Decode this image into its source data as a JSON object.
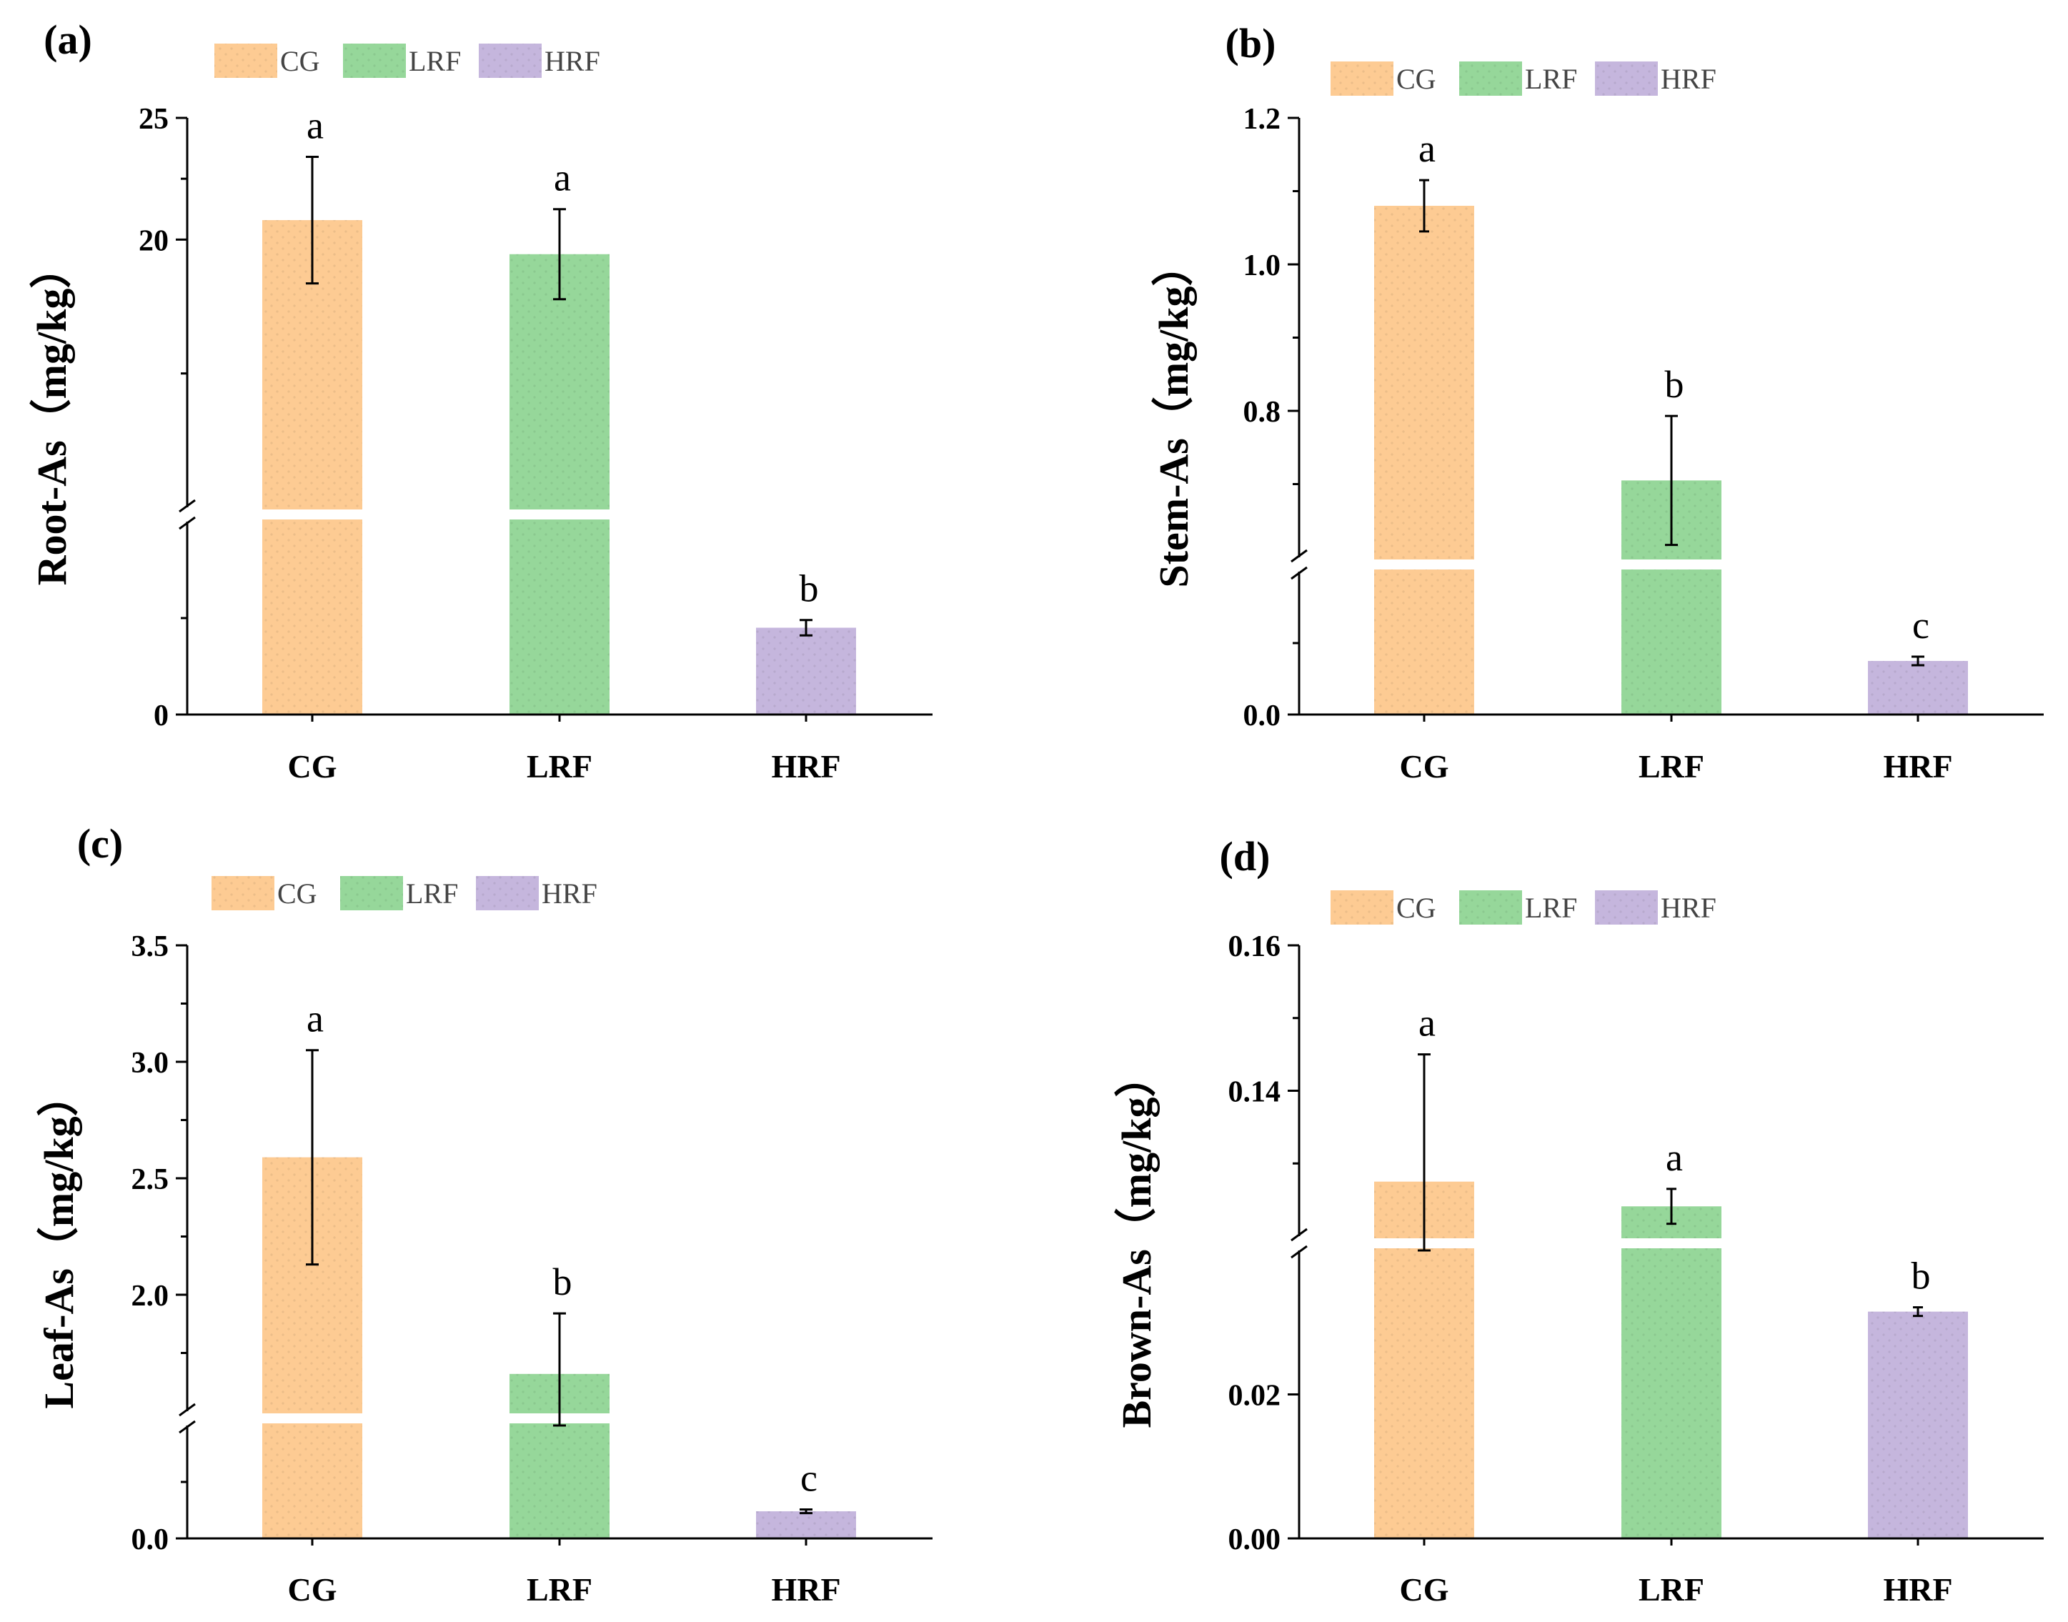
{
  "categories": [
    "CG",
    "LRF",
    "HRF"
  ],
  "colors": {
    "CG": "#FDCB93",
    "LRF": "#96D79A",
    "HRF": "#C5B6DD",
    "axis": "#000000",
    "error_bar": "#000000"
  },
  "chart_data": [
    {
      "type": "bar",
      "panel_label": "(a)",
      "ylabel": "Root-As（mg/kg）",
      "categories": [
        "CG",
        "LRF",
        "HRF"
      ],
      "legend": [
        "CG",
        "LRF",
        "HRF"
      ],
      "legend_placement": "top-left",
      "axis_break": true,
      "lower_range": [
        0,
        3
      ],
      "upper_range": [
        9,
        25
      ],
      "yticks": [
        {
          "value": 0,
          "label": "0"
        },
        {
          "value": 20,
          "label": "20"
        },
        {
          "value": 25,
          "label": "25"
        }
      ],
      "values": [
        20.8,
        19.4,
        1.35
      ],
      "errors": [
        2.6,
        1.85,
        0.12
      ],
      "significance": [
        "a",
        "a",
        "b"
      ]
    },
    {
      "type": "bar",
      "panel_label": "(b)",
      "ylabel": "Stem-As（mg/kg）",
      "categories": [
        "CG",
        "LRF",
        "HRF"
      ],
      "legend": [
        "CG",
        "LRF",
        "HRF"
      ],
      "legend_placement": "top-left",
      "axis_break": true,
      "lower_range": [
        0,
        0.2
      ],
      "upper_range": [
        0.6,
        1.2
      ],
      "yticks": [
        {
          "value": 0.0,
          "label": "0.0"
        },
        {
          "value": 0.8,
          "label": "0.8"
        },
        {
          "value": 1.0,
          "label": "1.0"
        },
        {
          "value": 1.2,
          "label": "1.2"
        }
      ],
      "values": [
        1.08,
        0.705,
        0.075
      ],
      "errors": [
        0.035,
        0.088,
        0.006
      ],
      "significance": [
        "a",
        "b",
        "c"
      ]
    },
    {
      "type": "bar",
      "panel_label": "(c)",
      "ylabel": "Leaf-As（mg/kg）",
      "categories": [
        "CG",
        "LRF",
        "HRF"
      ],
      "legend": [
        "CG",
        "LRF",
        "HRF"
      ],
      "legend_placement": "top-left",
      "axis_break": true,
      "lower_range": [
        0,
        0.5
      ],
      "upper_range": [
        1.5,
        3.5
      ],
      "yticks": [
        {
          "value": 0.0,
          "label": "0.0"
        },
        {
          "value": 2.0,
          "label": "2.0"
        },
        {
          "value": 2.5,
          "label": "2.5"
        },
        {
          "value": 3.0,
          "label": "3.0"
        },
        {
          "value": 3.5,
          "label": "3.5"
        }
      ],
      "values": [
        2.59,
        1.66,
        0.12
      ],
      "errors": [
        0.46,
        0.26,
        0.008
      ],
      "significance": [
        "a",
        "b",
        "c"
      ]
    },
    {
      "type": "bar",
      "panel_label": "(d)",
      "ylabel": "Brown-As（mg/kg）",
      "categories": [
        "CG",
        "LRF",
        "HRF"
      ],
      "legend": [
        "CG",
        "LRF",
        "HRF"
      ],
      "legend_placement": "top-left",
      "axis_break": true,
      "lower_range": [
        0,
        0.04
      ],
      "upper_range": [
        0.12,
        0.16
      ],
      "yticks": [
        {
          "value": 0.0,
          "label": "0.00"
        },
        {
          "value": 0.02,
          "label": "0.02"
        },
        {
          "value": 0.14,
          "label": "0.14"
        },
        {
          "value": 0.16,
          "label": "0.16"
        }
      ],
      "values": [
        0.1275,
        0.1241,
        0.0315
      ],
      "errors": [
        0.0175,
        0.0024,
        0.0006
      ],
      "significance": [
        "a",
        "a",
        "b"
      ]
    }
  ]
}
